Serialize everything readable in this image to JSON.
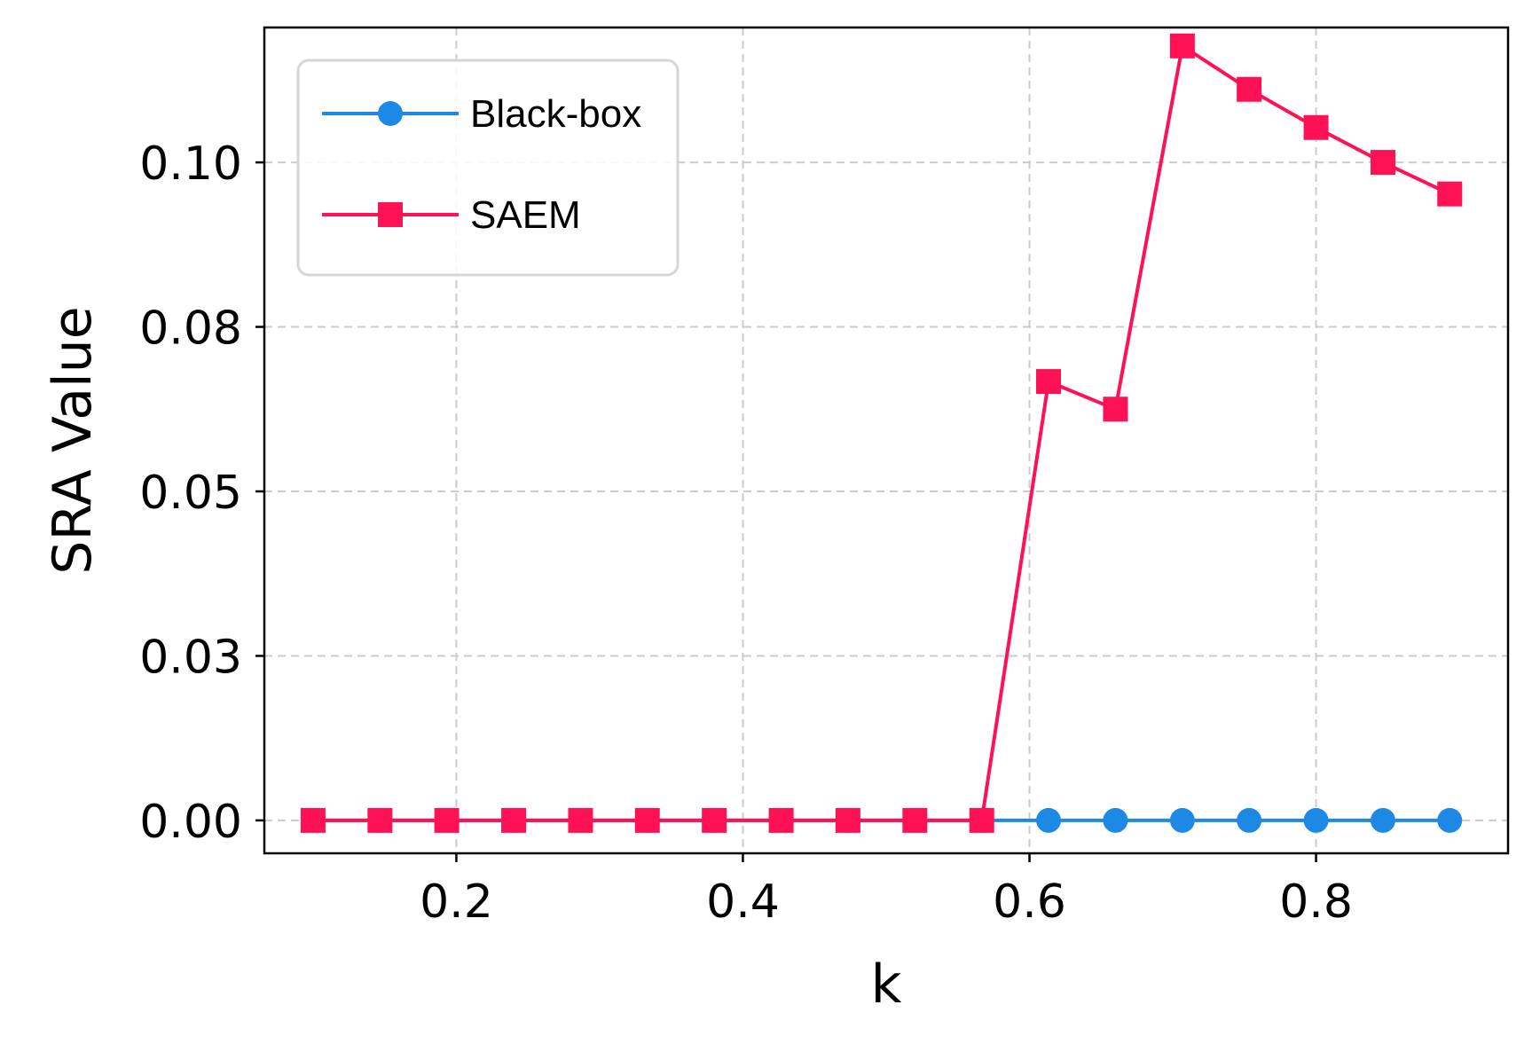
{
  "chart_data": {
    "type": "line",
    "title": "",
    "xlabel": "k",
    "ylabel": "SRA Value",
    "xlim": [
      0.066,
      0.934
    ],
    "ylim": [
      -0.005,
      0.1205
    ],
    "x": [
      0.1,
      0.1467,
      0.1933,
      0.24,
      0.2867,
      0.3333,
      0.38,
      0.4267,
      0.4733,
      0.52,
      0.5667,
      0.6133,
      0.66,
      0.7067,
      0.7533,
      0.8,
      0.8467,
      0.8933
    ],
    "xticks": [
      0.2,
      0.4,
      0.6,
      0.8
    ],
    "xtick_labels": [
      "0.2",
      "0.4",
      "0.6",
      "0.8"
    ],
    "yticks": [
      0.0,
      0.025,
      0.05,
      0.075,
      0.1
    ],
    "ytick_labels": [
      "0.00",
      "0.03",
      "0.05",
      "0.08",
      "0.10"
    ],
    "grid": true,
    "grid_style": "dashed",
    "legend_position": "upper-left",
    "series": [
      {
        "name": "Black-box",
        "color": "#1e88e5",
        "marker": "circle",
        "values": [
          0,
          0,
          0,
          0,
          0,
          0,
          0,
          0,
          0,
          0,
          0,
          0,
          0,
          0,
          0,
          0,
          0,
          0
        ]
      },
      {
        "name": "SAEM",
        "color": "#ff1155",
        "marker": "square",
        "values": [
          0,
          0,
          0,
          0,
          0,
          0,
          0,
          0,
          0,
          0,
          0,
          0.0667,
          0.0625,
          0.1177,
          0.1111,
          0.1053,
          0.1,
          0.0952
        ]
      }
    ]
  }
}
